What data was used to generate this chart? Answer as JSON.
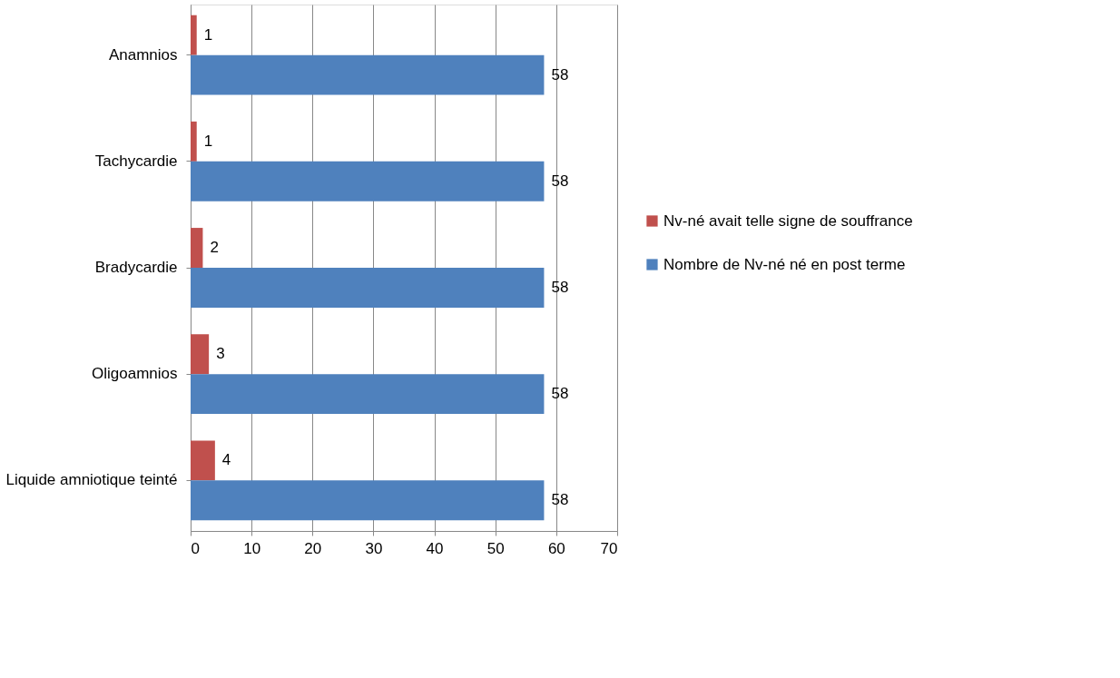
{
  "chart_data": {
    "type": "bar",
    "orientation": "horizontal",
    "categories": [
      "Anamnios",
      "Tachycardie",
      "Bradycardie",
      "Oligoamnios",
      "Liquide amniotique teinté"
    ],
    "series": [
      {
        "name": "Nv-né avait telle signe de souffrance",
        "color": "#c0504d",
        "values": [
          1,
          1,
          2,
          3,
          4
        ]
      },
      {
        "name": "Nombre de Nv-né né en post terme",
        "color": "#4f81bd",
        "values": [
          58,
          58,
          58,
          58,
          58
        ]
      }
    ],
    "xlim": [
      0,
      70
    ],
    "xticks": [
      0,
      10,
      20,
      30,
      40,
      50,
      60,
      70
    ],
    "grid": "x",
    "legend": "right",
    "data_labels": true
  }
}
